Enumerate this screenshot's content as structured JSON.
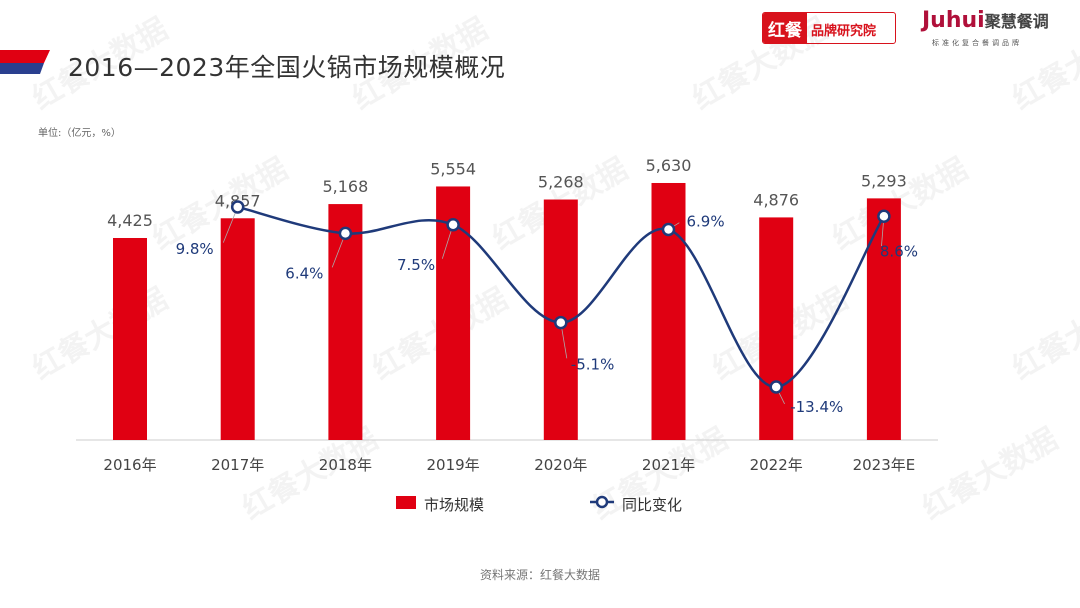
{
  "header": {
    "title": "2016—2023年全国火锅市场规模概况",
    "unit": "单位:（亿元，%）",
    "logo_left_a": "红餐",
    "logo_left_b": "品牌研究院",
    "logo_right": "Juhui",
    "logo_right_cn": "聚慧餐调",
    "logo_right_sub": "标准化复合餐调品牌",
    "watermark": "红餐大数据"
  },
  "footer": {
    "source": "资料来源：红餐大数据"
  },
  "colors": {
    "bar": "#e00012",
    "line": "#1f3a7a",
    "accent_blue": "#2a3f8f"
  },
  "chart_data": {
    "type": "bar+line",
    "categories": [
      "2016年",
      "2017年",
      "2018年",
      "2019年",
      "2020年",
      "2021年",
      "2022年",
      "2023年E"
    ],
    "series": [
      {
        "name": "市场规模",
        "type": "bar",
        "values": [
          4425,
          4857,
          5168,
          5554,
          5268,
          5630,
          4876,
          5293
        ],
        "labels": [
          "4,425",
          "4,857",
          "5,168",
          "5,554",
          "5,268",
          "5,630",
          "4,876",
          "5,293"
        ]
      },
      {
        "name": "同比变化",
        "type": "line",
        "values": [
          null,
          9.8,
          6.4,
          7.5,
          -5.1,
          6.9,
          -13.4,
          8.6
        ],
        "labels": [
          "",
          "9.8%",
          "6.4%",
          "7.5%",
          "-5.1%",
          "6.9%",
          "-13.4%",
          "8.6%"
        ]
      }
    ],
    "legend": "bottom",
    "grid": false
  }
}
